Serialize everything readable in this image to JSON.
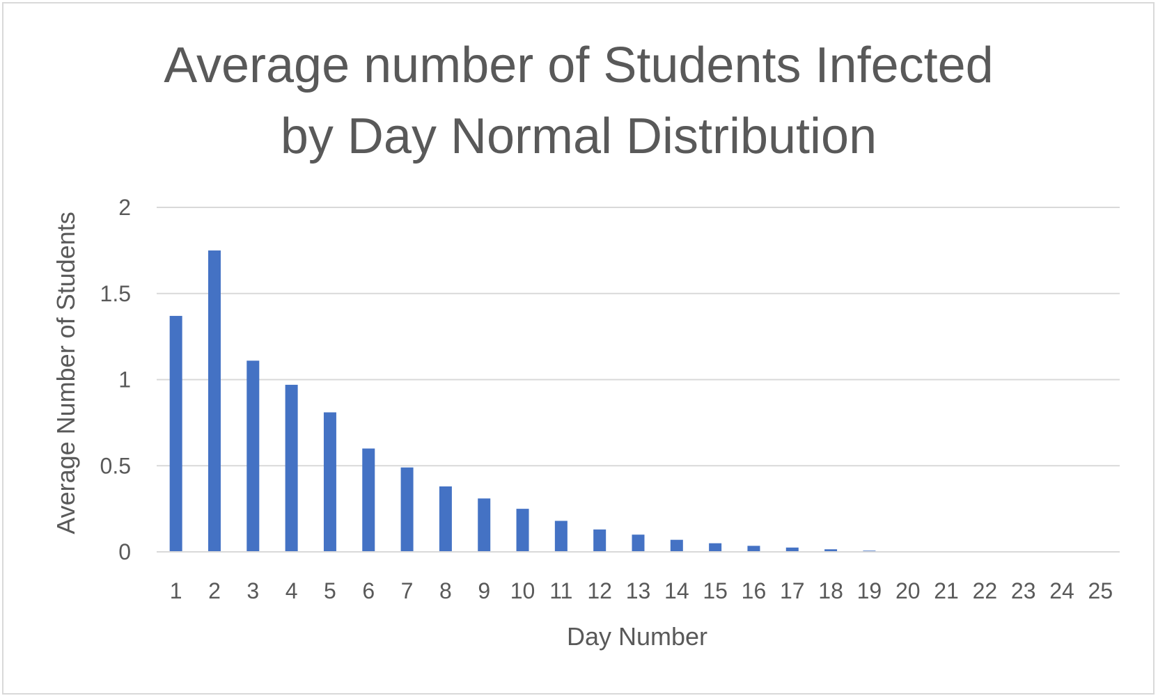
{
  "chart_data": {
    "type": "bar",
    "title": "Average number of Students Infected by Day Normal Distribution",
    "title_lines": [
      "Average number of Students Infected",
      "by Day Normal Distribution"
    ],
    "xlabel": "Day Number",
    "ylabel": "Average Number of Students",
    "ylim": [
      0,
      2
    ],
    "yticks": [
      "0",
      "0.5",
      "1",
      "1.5",
      "2"
    ],
    "grid": true,
    "legend": "none",
    "bar_color": "#4472c4",
    "categories": [
      "1",
      "2",
      "3",
      "4",
      "5",
      "6",
      "7",
      "8",
      "9",
      "10",
      "11",
      "12",
      "13",
      "14",
      "15",
      "16",
      "17",
      "18",
      "19",
      "20",
      "21",
      "22",
      "23",
      "24",
      "25"
    ],
    "values": [
      1.37,
      1.75,
      1.11,
      0.97,
      0.81,
      0.6,
      0.49,
      0.38,
      0.31,
      0.25,
      0.18,
      0.13,
      0.1,
      0.07,
      0.05,
      0.035,
      0.025,
      0.015,
      0.007,
      0,
      0,
      0,
      0,
      0,
      0
    ]
  }
}
